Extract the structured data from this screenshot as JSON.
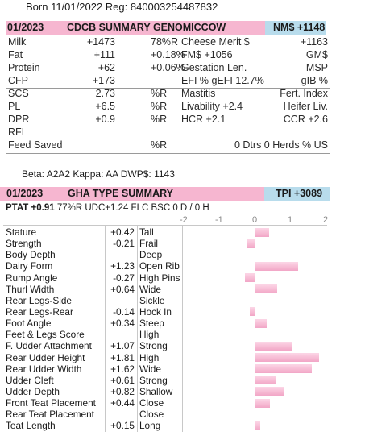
{
  "born_line": "Born 11/01/2022 Reg: 840003254487832",
  "cdcb": {
    "date": "01/2023",
    "title": "CDCB SUMMARY GENOMICCOW",
    "nm": "NM$ +1148",
    "rows": [
      {
        "l1": "Milk",
        "v1": "+1473",
        "p1": "78%R",
        "l2": "Cheese Merit $",
        "v2": "+1163"
      },
      {
        "l1": "Fat",
        "v1": "+111",
        "p1": "+0.18%",
        "l2": "FM$ +1056",
        "v2": "GM$"
      },
      {
        "l1": "Protein",
        "v1": "+62",
        "p1": "+0.06%",
        "l2": "Gestation Len.",
        "v2": "MSP"
      },
      {
        "l1": "CFP",
        "v1": "+173",
        "p1": "",
        "l2": "EFI  %   gEFI  12.7%",
        "v2": "gIB %"
      },
      {
        "l1": "SCS",
        "v1": "2.73",
        "p1": "%R",
        "l2": "Mastitis",
        "v2": "Fert. Index"
      },
      {
        "l1": "PL",
        "v1": "+6.5",
        "p1": "%R",
        "l2": "Livability  +2.4",
        "v2": "Heifer Liv."
      },
      {
        "l1": "DPR",
        "v1": "+0.9",
        "p1": "%R",
        "l2": "HCR  +2.1",
        "v2": "CCR  +2.6"
      },
      {
        "l1": "RFI",
        "v1": "",
        "p1": "",
        "l2": "",
        "v2": ""
      },
      {
        "l1": "Feed Saved",
        "v1": "",
        "p1": "%R",
        "l2": "",
        "v2": "0 Dtrs  0 Herds  % US"
      }
    ]
  },
  "beta_line": "Beta: A2A2   Kappa: AA   DWP$: 1143",
  "gha": {
    "date": "01/2023",
    "title": "GHA TYPE SUMMARY",
    "tpi": "TPI +3089",
    "ptat_bold": "PTAT +0.91",
    "ptat_rest": "77%R   UDC+1.24  FLC  BSC  0 D /  0 H",
    "axis_ticks": [
      "-2",
      "-1",
      "0",
      "1",
      "2"
    ],
    "traits": [
      {
        "name": "Stature",
        "value": "+0.42",
        "desc": "Tall",
        "num": 0.42
      },
      {
        "name": "Strength",
        "value": "-0.21",
        "desc": "Frail",
        "num": -0.21
      },
      {
        "name": "Body Depth",
        "value": "",
        "desc": "Deep",
        "num": 0
      },
      {
        "name": "Dairy Form",
        "value": "+1.23",
        "desc": "Open Rib",
        "num": 1.23
      },
      {
        "name": "Rump Angle",
        "value": "-0.27",
        "desc": "High Pins",
        "num": -0.27
      },
      {
        "name": "Thurl Width",
        "value": "+0.64",
        "desc": "Wide",
        "num": 0.64
      },
      {
        "name": "Rear Legs-Side",
        "value": "",
        "desc": "Sickle",
        "num": 0
      },
      {
        "name": "Rear Legs-Rear",
        "value": "-0.14",
        "desc": "Hock In",
        "num": -0.14
      },
      {
        "name": "Foot Angle",
        "value": "+0.34",
        "desc": "Steep",
        "num": 0.34
      },
      {
        "name": "Feet & Legs Score",
        "value": "",
        "desc": "High",
        "num": 0
      },
      {
        "name": "F. Udder Attachment",
        "value": "+1.07",
        "desc": "Strong",
        "num": 1.07
      },
      {
        "name": "Rear Udder Height",
        "value": "+1.81",
        "desc": "High",
        "num": 1.81
      },
      {
        "name": "Rear Udder Width",
        "value": "+1.62",
        "desc": "Wide",
        "num": 1.62
      },
      {
        "name": "Udder Cleft",
        "value": "+0.61",
        "desc": "Strong",
        "num": 0.61
      },
      {
        "name": "Udder Depth",
        "value": "+0.82",
        "desc": "Shallow",
        "num": 0.82
      },
      {
        "name": "Front Teat Placement",
        "value": "+0.44",
        "desc": "Close",
        "num": 0.44
      },
      {
        "name": "Rear Teat Placement",
        "value": "",
        "desc": "Close",
        "num": 0
      },
      {
        "name": "Teat Length",
        "value": "+0.15",
        "desc": "Long",
        "num": 0.15
      }
    ]
  }
}
